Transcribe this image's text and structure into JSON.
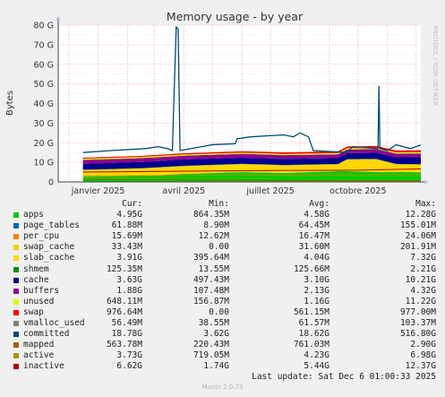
{
  "chart_data": {
    "type": "area",
    "title": "Memory usage - by year",
    "ylabel": "Bytes",
    "watermark": "RRDTOOL / TOBI OETIKER",
    "ylim": [
      0,
      80
    ],
    "y_ticks": [
      "0",
      "10 G",
      "20 G",
      "30 G",
      "40 G",
      "50 G",
      "60 G",
      "70 G",
      "80 G"
    ],
    "x_ticks": [
      "janvier 2025",
      "avril 2025",
      "juillet 2025",
      "octobre 2025"
    ],
    "x_range": [
      "2024-11-20",
      "2025-12-06"
    ],
    "x_tick_dates": [
      "2025-01-01",
      "2025-04-01",
      "2025-07-01",
      "2025-10-01"
    ],
    "data_start": "2024-12-16",
    "series": [
      {
        "name": "apps",
        "color": "#00cc00",
        "stack": true,
        "points": [
          [
            "2024-12-16",
            2.5
          ],
          [
            "2025-02-15",
            3.0
          ],
          [
            "2025-04-01",
            4.0
          ],
          [
            "2025-06-01",
            5.0
          ],
          [
            "2025-07-15",
            4.5
          ],
          [
            "2025-09-15",
            5.5
          ],
          [
            "2025-10-20",
            5.0
          ],
          [
            "2025-12-06",
            4.9
          ]
        ]
      },
      {
        "name": "page_tables",
        "color": "#0066b3",
        "stack": true,
        "points": [
          [
            "2024-12-16",
            0.06
          ],
          [
            "2025-12-06",
            0.06
          ]
        ]
      },
      {
        "name": "per_cpu",
        "color": "#ff8000",
        "stack": true,
        "points": [
          [
            "2024-12-16",
            0.02
          ],
          [
            "2025-12-06",
            0.02
          ]
        ]
      },
      {
        "name": "swap_cache",
        "color": "#ffcc00",
        "stack": true,
        "points": [
          [
            "2024-12-16",
            0.03
          ],
          [
            "2025-12-06",
            0.03
          ]
        ]
      },
      {
        "name": "slab_cache",
        "color": "#ffd700",
        "stack": true,
        "points": [
          [
            "2024-12-16",
            3.5
          ],
          [
            "2025-04-01",
            4.0
          ],
          [
            "2025-07-01",
            4.0
          ],
          [
            "2025-09-10",
            3.5
          ],
          [
            "2025-09-20",
            6.0
          ],
          [
            "2025-10-20",
            6.5
          ],
          [
            "2025-11-10",
            4.0
          ],
          [
            "2025-12-06",
            3.9
          ]
        ]
      },
      {
        "name": "shmem",
        "color": "#008f00",
        "stack": true,
        "points": [
          [
            "2024-12-16",
            0.12
          ],
          [
            "2025-12-06",
            0.12
          ]
        ]
      },
      {
        "name": "cache",
        "color": "#00008f",
        "stack": true,
        "points": [
          [
            "2024-12-16",
            3.0
          ],
          [
            "2025-04-01",
            3.2
          ],
          [
            "2025-07-01",
            3.1
          ],
          [
            "2025-10-01",
            3.0
          ],
          [
            "2025-12-06",
            3.6
          ]
        ]
      },
      {
        "name": "buffers",
        "color": "#8f008f",
        "stack": true,
        "points": [
          [
            "2024-12-16",
            2.0
          ],
          [
            "2025-12-06",
            1.9
          ]
        ]
      },
      {
        "name": "unused",
        "color": "#ccff00",
        "stack": true,
        "points": [
          [
            "2024-12-16",
            0.6
          ],
          [
            "2025-12-06",
            0.65
          ]
        ]
      },
      {
        "name": "swap",
        "color": "#ff0000",
        "stack": true,
        "points": [
          [
            "2024-12-16",
            0.5
          ],
          [
            "2025-04-01",
            0.6
          ],
          [
            "2025-12-06",
            0.98
          ]
        ]
      },
      {
        "name": "vmalloc_used",
        "color": "#808080",
        "stack": false,
        "points": [
          [
            "2024-12-16",
            0.06
          ],
          [
            "2025-12-06",
            0.06
          ]
        ]
      },
      {
        "name": "committed",
        "color": "#004b73",
        "stack": false,
        "points": [
          [
            "2024-12-16",
            15.0
          ],
          [
            "2025-01-15",
            16.0
          ],
          [
            "2025-02-20",
            17.0
          ],
          [
            "2025-03-05",
            18.0
          ],
          [
            "2025-03-15",
            17.0
          ],
          [
            "2025-03-20",
            16.0
          ],
          [
            "2025-03-21",
            33.0
          ],
          [
            "2025-03-24",
            79.0
          ],
          [
            "2025-03-26",
            78.0
          ],
          [
            "2025-03-28",
            16.0
          ],
          [
            "2025-04-20",
            18.0
          ],
          [
            "2025-05-01",
            19.0
          ],
          [
            "2025-05-25",
            19.5
          ],
          [
            "2025-05-27",
            22.0
          ],
          [
            "2025-06-10",
            23.0
          ],
          [
            "2025-07-15",
            24.0
          ],
          [
            "2025-07-25",
            23.0
          ],
          [
            "2025-08-01",
            25.0
          ],
          [
            "2025-08-10",
            23.0
          ],
          [
            "2025-08-15",
            16.0
          ],
          [
            "2025-09-20",
            15.0
          ],
          [
            "2025-09-25",
            18.0
          ],
          [
            "2025-10-22",
            17.0
          ],
          [
            "2025-10-23",
            49.0
          ],
          [
            "2025-10-24",
            17.0
          ],
          [
            "2025-11-01",
            16.0
          ],
          [
            "2025-11-10",
            19.0
          ],
          [
            "2025-11-25",
            17.0
          ],
          [
            "2025-12-06",
            18.8
          ]
        ]
      },
      {
        "name": "mapped",
        "color": "#b35a00",
        "stack": false,
        "points": [
          [
            "2024-12-16",
            1.2
          ],
          [
            "2025-12-06",
            0.56
          ]
        ]
      },
      {
        "name": "active",
        "color": "#b38f00",
        "stack": false,
        "points": [
          [
            "2024-12-16",
            3.0
          ],
          [
            "2025-12-06",
            3.7
          ]
        ]
      },
      {
        "name": "inactive",
        "color": "#b30000",
        "stack": false,
        "points": [
          [
            "2024-12-16",
            5.0
          ],
          [
            "2025-04-01",
            5.5
          ],
          [
            "2025-07-01",
            5.8
          ],
          [
            "2025-10-01",
            6.0
          ],
          [
            "2025-12-06",
            6.6
          ]
        ]
      }
    ]
  },
  "legend": {
    "headers": {
      "cur": "Cur:",
      "min": "Min:",
      "avg": "Avg:",
      "max": "Max:"
    },
    "rows": [
      {
        "name": "apps",
        "color": "#00cc00",
        "cur": "4.95G",
        "min": "864.35M",
        "avg": "4.58G",
        "max": "12.28G"
      },
      {
        "name": "page_tables",
        "color": "#0066b3",
        "cur": "61.88M",
        "min": "8.90M",
        "avg": "64.45M",
        "max": "155.01M"
      },
      {
        "name": "per_cpu",
        "color": "#ff8000",
        "cur": "15.69M",
        "min": "12.62M",
        "avg": "16.47M",
        "max": "24.06M"
      },
      {
        "name": "swap_cache",
        "color": "#ffcc00",
        "cur": "33.43M",
        "min": "0.00",
        "avg": "31.60M",
        "max": "201.91M"
      },
      {
        "name": "slab_cache",
        "color": "#ffd700",
        "cur": "3.91G",
        "min": "395.64M",
        "avg": "4.04G",
        "max": "7.32G"
      },
      {
        "name": "shmem",
        "color": "#008f00",
        "cur": "125.35M",
        "min": "13.55M",
        "avg": "125.66M",
        "max": "2.21G"
      },
      {
        "name": "cache",
        "color": "#00008f",
        "cur": "3.63G",
        "min": "497.43M",
        "avg": "3.10G",
        "max": "10.21G"
      },
      {
        "name": "buffers",
        "color": "#8f008f",
        "cur": "1.88G",
        "min": "107.48M",
        "avg": "2.13G",
        "max": "4.32G"
      },
      {
        "name": "unused",
        "color": "#ccff00",
        "cur": "648.11M",
        "min": "156.87M",
        "avg": "1.16G",
        "max": "11.22G"
      },
      {
        "name": "swap",
        "color": "#ff0000",
        "cur": "976.64M",
        "min": "0.00",
        "avg": "561.15M",
        "max": "977.00M"
      },
      {
        "name": "vmalloc_used",
        "color": "#808080",
        "cur": "56.49M",
        "min": "38.55M",
        "avg": "61.57M",
        "max": "103.37M"
      },
      {
        "name": "committed",
        "color": "#004b73",
        "cur": "18.78G",
        "min": "3.62G",
        "avg": "18.62G",
        "max": "516.80G"
      },
      {
        "name": "mapped",
        "color": "#b35a00",
        "cur": "563.78M",
        "min": "220.43M",
        "avg": "761.03M",
        "max": "2.90G"
      },
      {
        "name": "active",
        "color": "#b38f00",
        "cur": "3.73G",
        "min": "719.05M",
        "avg": "4.23G",
        "max": "6.98G"
      },
      {
        "name": "inactive",
        "color": "#b30000",
        "cur": "6.62G",
        "min": "1.74G",
        "avg": "5.44G",
        "max": "12.37G"
      }
    ]
  },
  "footer": {
    "last_update": "Last update: Sat Dec  6 01:00:33 2025",
    "generator": "Munin 2.0.73"
  }
}
